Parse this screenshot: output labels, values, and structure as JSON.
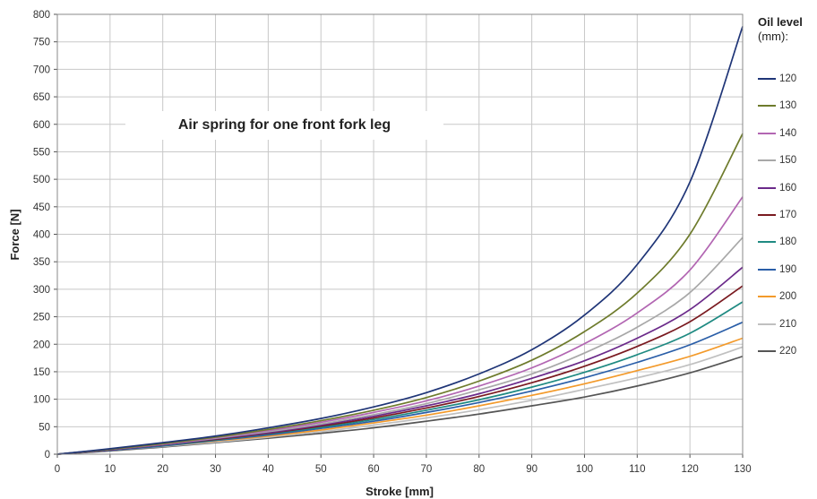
{
  "chart_data": {
    "type": "line",
    "annotation": "Air spring for one front fork leg",
    "xlabel": "Stroke [mm]",
    "ylabel": "Force [N]",
    "xlim": [
      0,
      130
    ],
    "ylim": [
      0,
      800
    ],
    "xticks": [
      0,
      10,
      20,
      30,
      40,
      50,
      60,
      70,
      80,
      90,
      100,
      110,
      120,
      130
    ],
    "yticks": [
      0,
      50,
      100,
      150,
      200,
      250,
      300,
      350,
      400,
      450,
      500,
      550,
      600,
      650,
      700,
      750,
      800
    ],
    "grid": true,
    "legend_title": "Oil level",
    "legend_unit": "(mm):",
    "legend_placement": "right",
    "x": [
      0,
      10,
      20,
      30,
      40,
      50,
      60,
      70,
      80,
      90,
      100,
      110,
      120,
      130
    ],
    "series": [
      {
        "name": "120",
        "color": "#1f3577",
        "values": [
          0,
          10,
          21,
          33,
          48,
          65,
          86,
          112,
          146,
          190,
          253,
          345,
          495,
          778
        ]
      },
      {
        "name": "130",
        "color": "#6e7b2c",
        "values": [
          0,
          9,
          19,
          31,
          45,
          61,
          80,
          103,
          133,
          171,
          223,
          293,
          400,
          583
        ]
      },
      {
        "name": "140",
        "color": "#b266b2",
        "values": [
          0,
          9,
          18,
          30,
          43,
          58,
          76,
          97,
          124,
          157,
          201,
          257,
          335,
          468
        ]
      },
      {
        "name": "150",
        "color": "#a8a8a8",
        "values": [
          0,
          9,
          18,
          29,
          41,
          55,
          72,
          92,
          117,
          146,
          184,
          231,
          294,
          394
        ]
      },
      {
        "name": "160",
        "color": "#6b2a8a",
        "values": [
          0,
          8,
          17,
          28,
          39,
          53,
          69,
          88,
          110,
          138,
          170,
          211,
          263,
          340
        ]
      },
      {
        "name": "170",
        "color": "#7a1a20",
        "values": [
          0,
          8,
          17,
          27,
          38,
          51,
          66,
          84,
          105,
          130,
          160,
          196,
          241,
          306
        ]
      },
      {
        "name": "180",
        "color": "#1f8a82",
        "values": [
          0,
          8,
          16,
          26,
          37,
          49,
          63,
          80,
          99,
          122,
          149,
          181,
          220,
          277
        ]
      },
      {
        "name": "190",
        "color": "#2a5ea8",
        "values": [
          0,
          7,
          15,
          25,
          35,
          47,
          60,
          76,
          94,
          115,
          139,
          167,
          199,
          240
        ]
      },
      {
        "name": "200",
        "color": "#f39a2b",
        "values": [
          0,
          7,
          15,
          24,
          33,
          44,
          57,
          71,
          88,
          107,
          128,
          152,
          178,
          211
        ]
      },
      {
        "name": "210",
        "color": "#c0c0c0",
        "values": [
          0,
          7,
          14,
          22,
          31,
          41,
          53,
          66,
          81,
          98,
          118,
          139,
          163,
          195
        ]
      },
      {
        "name": "220",
        "color": "#555555",
        "values": [
          0,
          6,
          13,
          21,
          29,
          38,
          48,
          60,
          73,
          88,
          104,
          124,
          148,
          178
        ]
      }
    ]
  }
}
